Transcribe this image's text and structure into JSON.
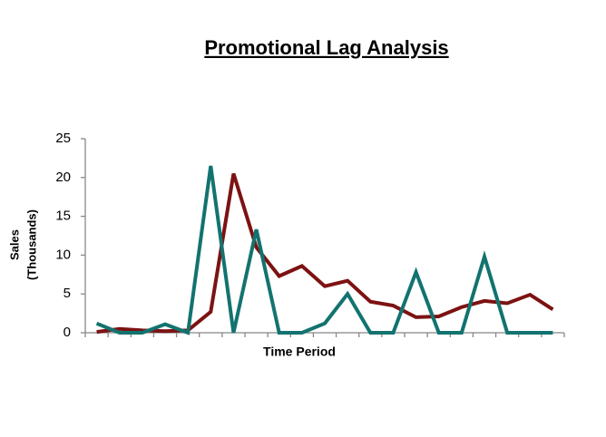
{
  "chart_data": {
    "type": "line",
    "title": "Promotional Lag Analysis",
    "x_label": "Time Period",
    "y_label": [
      "Sales",
      "(Thousands)"
    ],
    "categories": [
      null,
      null,
      null,
      null,
      null,
      null,
      null,
      null,
      null,
      null,
      null,
      null,
      null,
      null,
      null,
      null,
      null,
      null,
      null,
      null,
      null
    ],
    "series": [
      {
        "color": "#7d1212",
        "values": [
          0.1,
          0.5,
          0.3,
          0.2,
          0.3,
          2.7,
          20.5,
          11,
          7.3,
          8.6,
          6.0,
          6.7,
          4.0,
          3.5,
          2.0,
          2.1,
          3.3,
          4.1,
          3.8,
          4.9,
          3.0
        ]
      },
      {
        "color": "#12736f",
        "values": [
          1.2,
          0,
          0,
          1.1,
          0,
          21.5,
          0,
          13.3,
          0,
          0,
          1.2,
          5.0,
          0,
          0,
          7.8,
          0,
          0,
          9.8,
          0,
          0,
          0
        ]
      }
    ],
    "ylim": [
      0,
      25
    ],
    "yticks": [
      0,
      5,
      10,
      15,
      20,
      25
    ],
    "grid": false
  }
}
